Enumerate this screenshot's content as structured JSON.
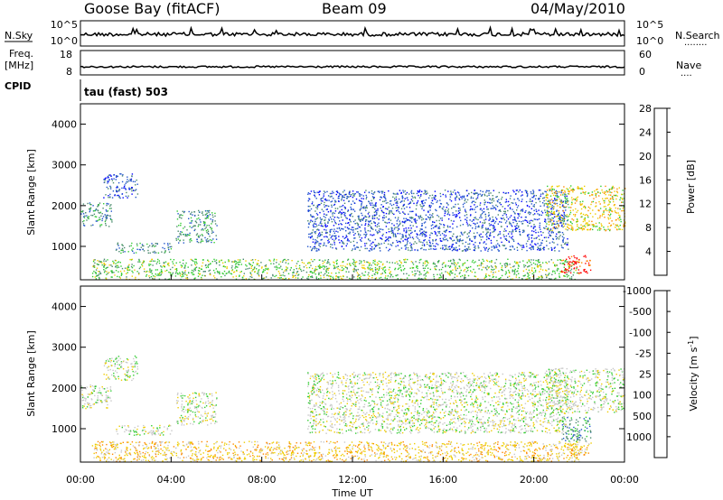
{
  "header": {
    "station": "Goose Bay (fitACF)",
    "beam": "Beam 09",
    "date": "04/May/2010"
  },
  "left_labels": {
    "nsky": "N.Sky",
    "freq": "Freq.",
    "freq_unit": "[MHz]",
    "cpid": "CPID"
  },
  "right_labels": {
    "nsearch": "N.Search",
    "nsearch_dots": "........",
    "nave": "Nave",
    "nave_dots": "...."
  },
  "cpid_text": "tau (fast) 503",
  "noise_panel": {
    "tick_top": "10^5",
    "tick_bottom": "10^0",
    "right_top": "10^5",
    "right_bottom": "10^0"
  },
  "freq_panel": {
    "left_top": "18",
    "left_bottom": "8",
    "right_top": "60",
    "right_bottom": "0"
  },
  "x_axis": {
    "label": "Time UT",
    "ticks": [
      "00:00",
      "04:00",
      "08:00",
      "12:00",
      "16:00",
      "20:00",
      "00:00"
    ]
  },
  "chart_data": [
    {
      "type": "heatmap",
      "title": "",
      "quantity": "Power",
      "ylabel": "Slant Range [km]",
      "xlabel": "",
      "ylim": [
        180,
        4500
      ],
      "yticks": [
        "1000",
        "2000",
        "3000",
        "4000"
      ],
      "colorbar_label": "Power [dB]",
      "colorbar_ticks": [
        "4",
        "8",
        "12",
        "16",
        "20",
        "24",
        "28"
      ],
      "colors": [
        "#0000ff",
        "#2255cc",
        "#4b8a6e",
        "#33cc33",
        "#eecc00",
        "#ff8800",
        "#ff0000"
      ],
      "echo_regions": [
        {
          "t": [
            0.0,
            1.4
          ],
          "r": [
            1500,
            2100
          ],
          "level": 2
        },
        {
          "t": [
            1.0,
            2.5
          ],
          "r": [
            2200,
            2800
          ],
          "level": 1
        },
        {
          "t": [
            1.5,
            4.0
          ],
          "r": [
            850,
            1100
          ],
          "level": 2
        },
        {
          "t": [
            4.2,
            6.0
          ],
          "r": [
            1100,
            1900
          ],
          "level": 2
        },
        {
          "t": [
            10.0,
            21.5
          ],
          "r": [
            900,
            2400
          ],
          "level": 1
        },
        {
          "t": [
            0.5,
            22.0
          ],
          "r": [
            200,
            700
          ],
          "level": 3
        },
        {
          "t": [
            20.5,
            24.0
          ],
          "r": [
            1400,
            2500
          ],
          "level": 4
        },
        {
          "t": [
            21.2,
            22.5
          ],
          "r": [
            350,
            800
          ],
          "level": 6
        }
      ]
    },
    {
      "type": "heatmap",
      "title": "",
      "quantity": "Velocity",
      "ylabel": "Slant Range [km]",
      "xlabel": "Time UT",
      "ylim": [
        180,
        4500
      ],
      "yticks": [
        "1000",
        "2000",
        "3000",
        "4000"
      ],
      "colorbar_label": "Velocity [m s^-1]",
      "colorbar_ticks": [
        "1000",
        "500",
        "100",
        "25",
        "-25",
        "-100",
        "-500",
        "-1000"
      ],
      "colors": [
        "#0000ff",
        "#2255cc",
        "#4b8a6e",
        "#33cc33",
        "#c8c8c8",
        "#eecc00",
        "#ff8800",
        "#ff0000"
      ],
      "echo_regions": [
        {
          "t": [
            0.0,
            1.4
          ],
          "r": [
            1500,
            2100
          ],
          "level": 4
        },
        {
          "t": [
            1.0,
            2.5
          ],
          "r": [
            2200,
            2800
          ],
          "level": 4
        },
        {
          "t": [
            1.5,
            4.0
          ],
          "r": [
            850,
            1100
          ],
          "level": 4
        },
        {
          "t": [
            4.2,
            6.0
          ],
          "r": [
            1100,
            1900
          ],
          "level": 4
        },
        {
          "t": [
            10.0,
            21.5
          ],
          "r": [
            900,
            2400
          ],
          "level": 4
        },
        {
          "t": [
            0.5,
            22.0
          ],
          "r": [
            200,
            700
          ],
          "level": 5
        },
        {
          "t": [
            20.5,
            24.0
          ],
          "r": [
            1400,
            2500
          ],
          "level": 4
        },
        {
          "t": [
            21.2,
            22.5
          ],
          "r": [
            700,
            1300
          ],
          "level": 2
        },
        {
          "t": [
            21.2,
            22.5
          ],
          "r": [
            350,
            700
          ],
          "level": 5
        }
      ]
    }
  ]
}
